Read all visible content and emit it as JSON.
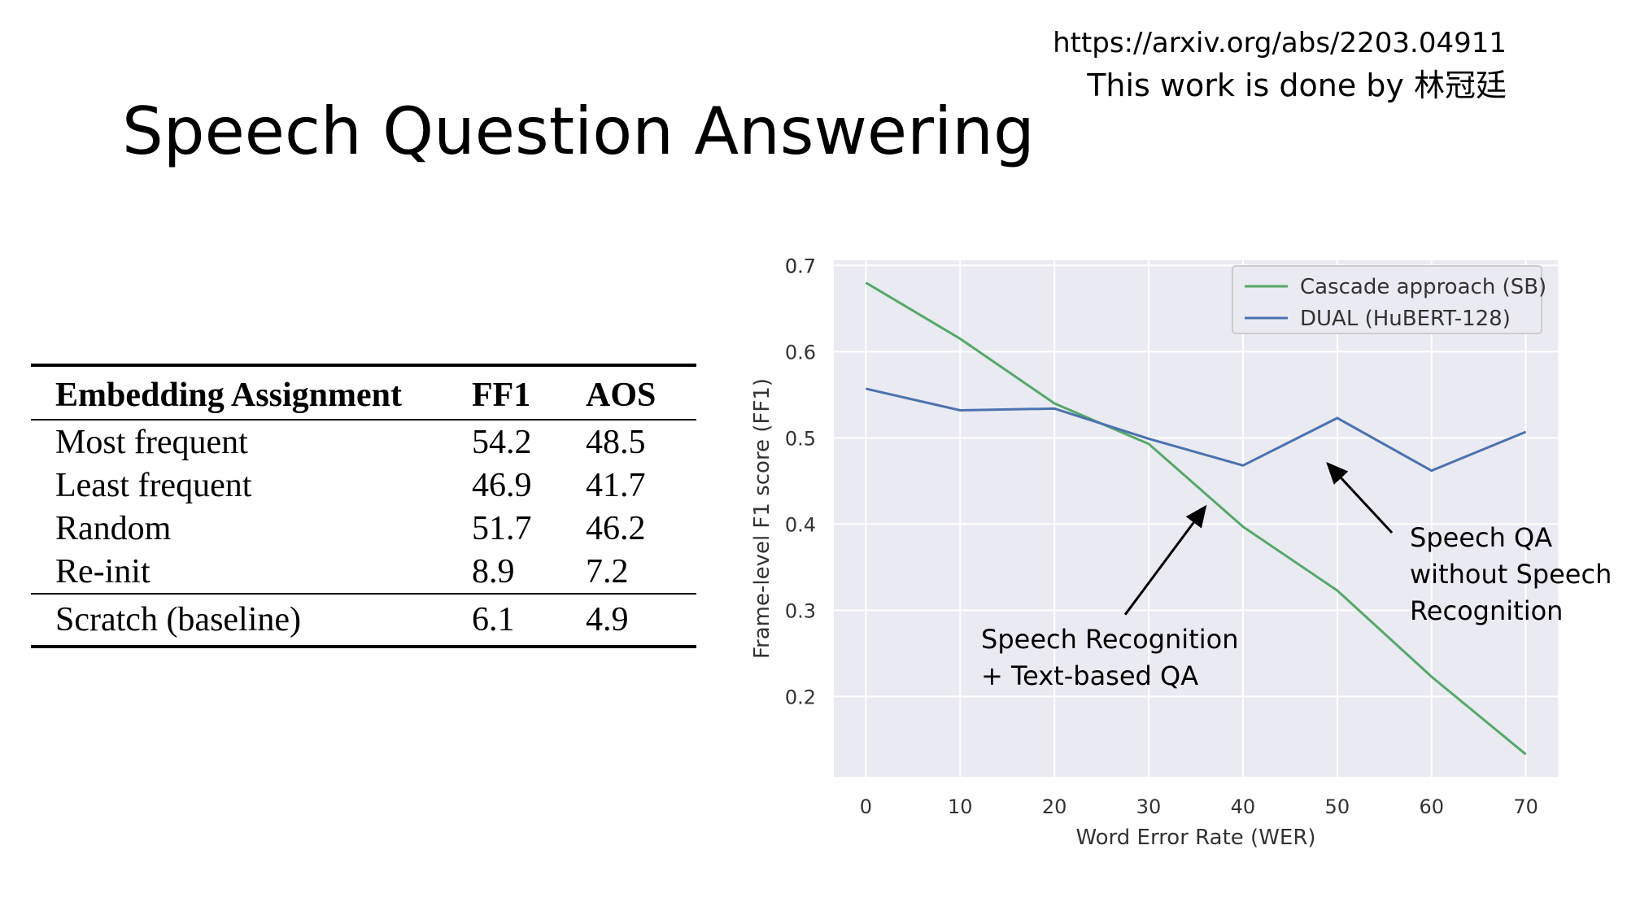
{
  "slide": {
    "title": "Speech Question Answering",
    "source_url": "https://arxiv.org/abs/2203.04911",
    "credit": "This work is done by 林冠廷"
  },
  "table": {
    "headers": [
      "Embedding Assignment",
      "FF1",
      "AOS"
    ],
    "rows": [
      [
        "Most frequent",
        "54.2",
        "48.5"
      ],
      [
        "Least frequent",
        "46.9",
        "41.7"
      ],
      [
        "Random",
        "51.7",
        "46.2"
      ],
      [
        "Re-init",
        "8.9",
        "7.2"
      ]
    ],
    "baseline": [
      "Scratch (baseline)",
      "6.1",
      "4.9"
    ]
  },
  "chart_data": {
    "type": "line",
    "x": [
      0,
      10,
      20,
      30,
      40,
      50,
      60,
      70
    ],
    "series": [
      {
        "name": "Cascade approach (SB)",
        "color": "#55a868",
        "values": [
          0.68,
          0.615,
          0.54,
          0.493,
          0.397,
          0.323,
          0.223,
          0.133
        ]
      },
      {
        "name": "DUAL (HuBERT-128)",
        "color": "#4c72b0",
        "values": [
          0.557,
          0.532,
          0.534,
          0.499,
          0.468,
          0.523,
          0.462,
          0.507
        ]
      }
    ],
    "xlabel": "Word Error Rate (WER)",
    "ylabel": "Frame-level F1 score (FF1)",
    "xticks": [
      0,
      10,
      20,
      30,
      40,
      50,
      60,
      70
    ],
    "yticks": [
      0.2,
      0.3,
      0.4,
      0.5,
      0.6,
      0.7
    ],
    "xlim": [
      -3.4,
      73.4
    ],
    "ylim": [
      0.107,
      0.706
    ],
    "grid": true,
    "legend": "top-right",
    "annotations": [
      {
        "text": [
          "Speech Recognition",
          "+ Text-based QA"
        ],
        "points_to": [
          36,
          0.42
        ]
      },
      {
        "text": [
          "Speech QA",
          "without Speech",
          "Recognition"
        ],
        "points_to": [
          49,
          0.47
        ]
      }
    ]
  }
}
